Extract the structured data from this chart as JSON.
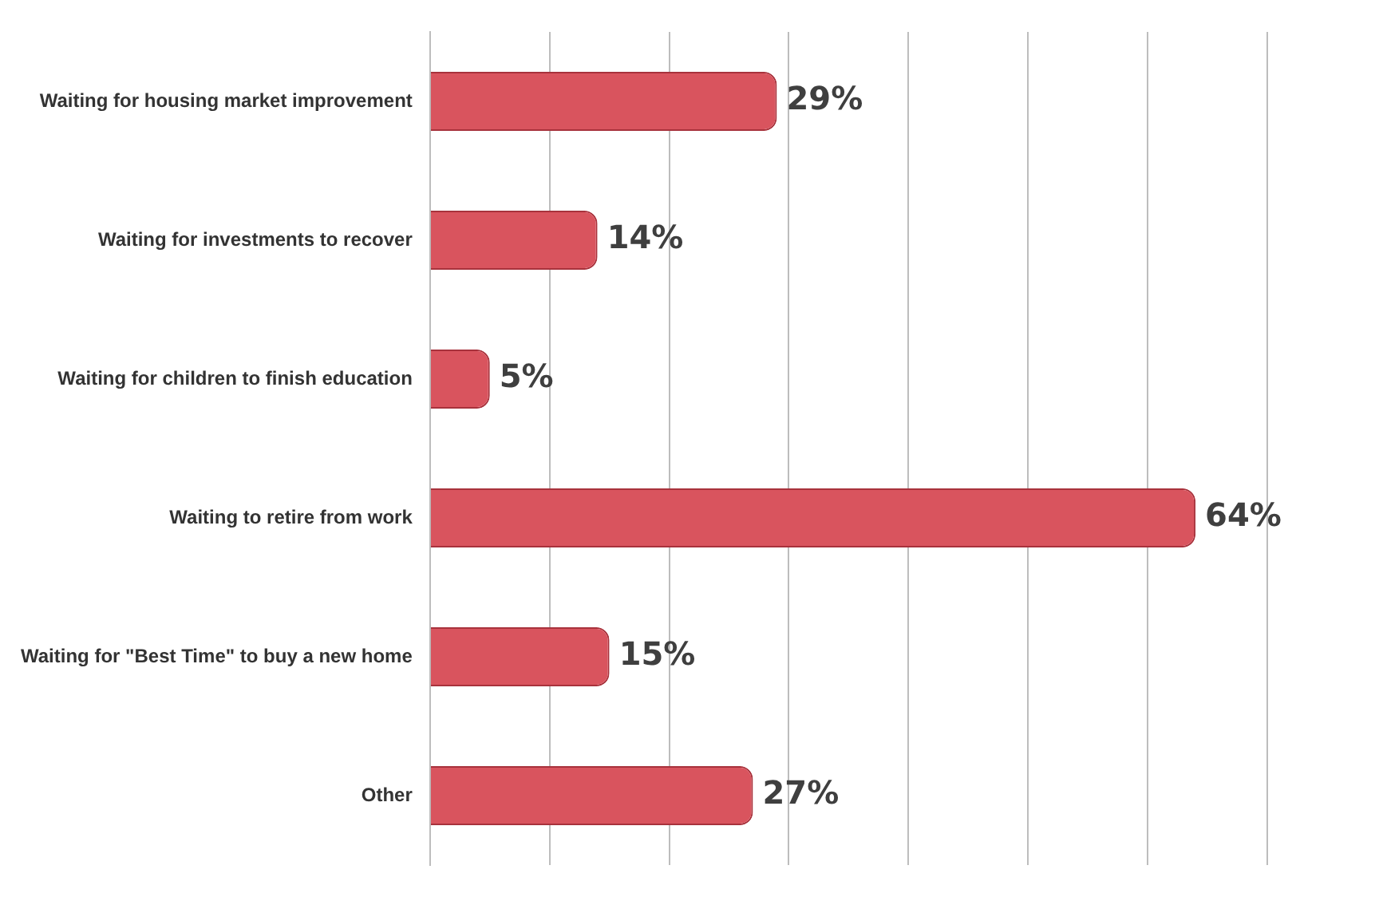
{
  "chart_data": {
    "type": "bar",
    "orientation": "horizontal",
    "categories": [
      "Waiting for housing market improvement",
      "Waiting for investments to recover",
      "Waiting for children to finish education",
      "Waiting to retire from work",
      "Waiting for \"Best Time\" to buy a new home",
      "Other"
    ],
    "values": [
      29,
      14,
      5,
      64,
      15,
      27
    ],
    "value_labels": [
      "29%",
      "14%",
      "5%",
      "64%",
      "15%",
      "27%"
    ],
    "color": "#d9545e",
    "xlim": [
      0,
      70
    ],
    "xticks": [
      {
        "value": 0,
        "label": null
      },
      {
        "value": 10,
        "label": null
      },
      {
        "value": 20,
        "label": null
      },
      {
        "value": 30,
        "label": null
      },
      {
        "value": 40,
        "label": null
      },
      {
        "value": 50,
        "label": null
      },
      {
        "value": 60,
        "label": null
      },
      {
        "value": 70,
        "label": null
      }
    ],
    "grid": "x",
    "tick_labels": "y",
    "legend": false
  }
}
